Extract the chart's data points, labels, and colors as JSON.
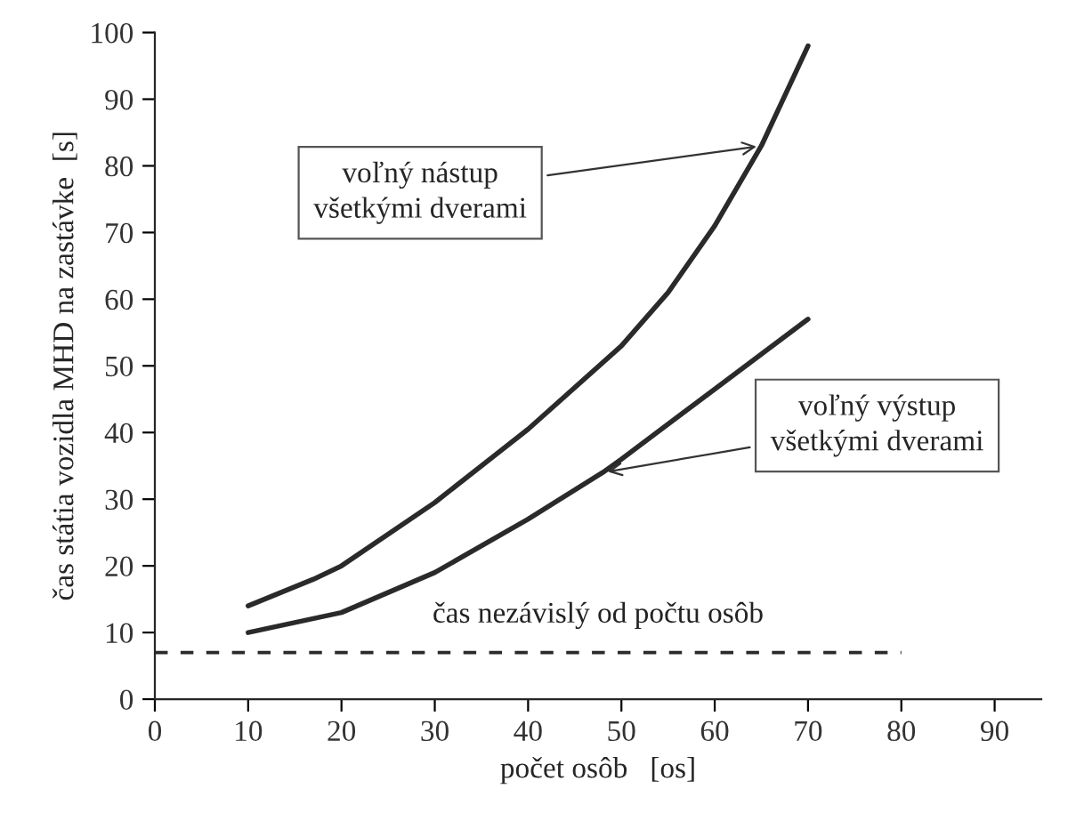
{
  "chart_data": {
    "type": "line",
    "xlabel": "počet osôb   [os]",
    "ylabel": "čas státia vozidla MHD na zastávke  [s]",
    "xlim": [
      0,
      95
    ],
    "ylim": [
      0,
      100
    ],
    "xticks": [
      0,
      10,
      20,
      30,
      40,
      50,
      60,
      70,
      80,
      90
    ],
    "yticks": [
      0,
      10,
      20,
      30,
      40,
      50,
      60,
      70,
      80,
      90,
      100
    ],
    "grid": false,
    "legend": false,
    "marker": "none",
    "series": [
      {
        "color": "#2a2a2a",
        "line_style": "solid",
        "x": [
          10,
          17,
          20,
          30,
          40,
          50,
          55,
          60,
          65,
          70
        ],
        "values": [
          14,
          18,
          20,
          29.5,
          40.5,
          53,
          61,
          71,
          83,
          98
        ]
      },
      {
        "color": "#2a2a2a",
        "line_style": "solid",
        "x": [
          10,
          20,
          30,
          40,
          48,
          50,
          60,
          70
        ],
        "values": [
          10,
          13,
          19,
          27,
          34,
          36,
          46.5,
          57
        ]
      },
      {
        "color": "#2a2a2a",
        "line_style": "dashed",
        "x": [
          0,
          80
        ],
        "values": [
          7,
          7
        ]
      }
    ],
    "annotations": [
      {
        "text": "voľný nástup\nvšetkými dverami",
        "x": 65,
        "y": 83
      },
      {
        "text": "voľný výstup\nvšetkými dverami",
        "x": 48,
        "y": 34
      },
      "čas nezávislý od počtu osôb"
    ]
  }
}
